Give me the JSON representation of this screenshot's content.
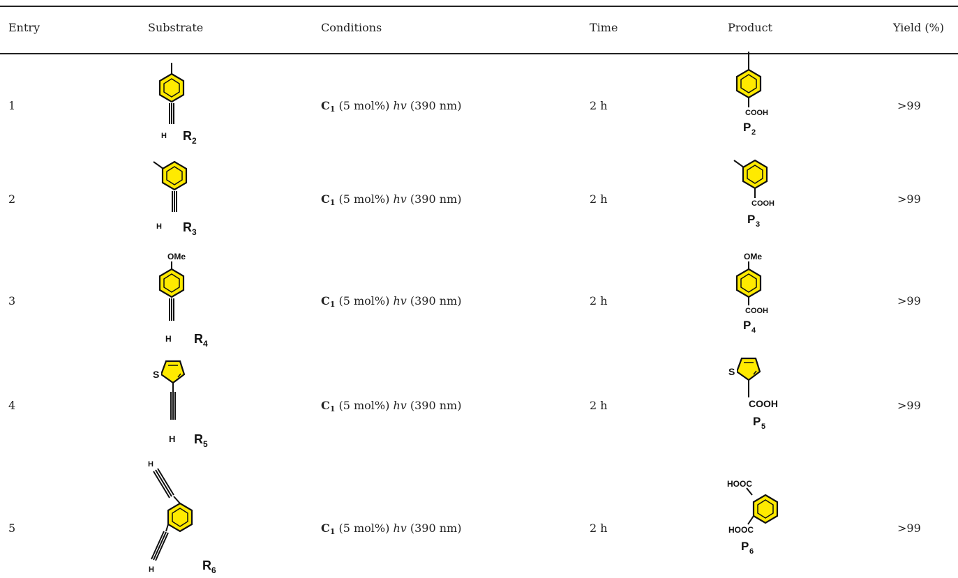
{
  "table": {
    "headers": {
      "entry": "Entry",
      "substrate": "Substrate",
      "conditions": "Conditions",
      "time": "Time",
      "product": "Product",
      "yield": "Yield (%)"
    },
    "rows": [
      {
        "entry": "1",
        "substrate_label": "R",
        "substrate_sub": "2",
        "catalyst": "C",
        "catalyst_sub": "1",
        "loading": " (5 mol%) ",
        "light": "hv",
        "wavelength": " (390 nm)",
        "time": "2 h",
        "product_label": "P",
        "product_sub": "2",
        "yield": ">99"
      },
      {
        "entry": "2",
        "substrate_label": "R",
        "substrate_sub": "3",
        "catalyst": "C",
        "catalyst_sub": "1",
        "loading": " (5 mol%) ",
        "light": "hv",
        "wavelength": " (390 nm)",
        "time": "2 h",
        "product_label": "P",
        "product_sub": "3",
        "yield": ">99"
      },
      {
        "entry": "3",
        "substrate_label": "R",
        "substrate_sub": "4",
        "catalyst": "C",
        "catalyst_sub": "1",
        "loading": " (5 mol%) ",
        "light": "hv",
        "wavelength": " (390 nm)",
        "time": "2 h",
        "product_label": "P",
        "product_sub": "4",
        "yield": ">99"
      },
      {
        "entry": "4",
        "substrate_label": "R",
        "substrate_sub": "5",
        "catalyst": "C",
        "catalyst_sub": "1",
        "loading": " (5 mol%) ",
        "light": "hv",
        "wavelength": " (390 nm)",
        "time": "2 h",
        "product_label": "P",
        "product_sub": "5",
        "yield": ">99"
      },
      {
        "entry": "5",
        "substrate_label": "R",
        "substrate_sub": "6",
        "catalyst": "C",
        "catalyst_sub": "1",
        "loading": " (5 mol%) ",
        "light": "hv",
        "wavelength": " (390 nm)",
        "time": "2 h",
        "product_label": "P",
        "product_sub": "6",
        "yield": ">99"
      }
    ]
  },
  "structure_labels": {
    "hydrogen": "H",
    "carboxyl": "COOH",
    "carboxyl_left": "HOOC",
    "methoxy": "OMe",
    "sulfur": "S"
  },
  "colors": {
    "ring_fill": "#ffea00",
    "rule": "#222222"
  }
}
